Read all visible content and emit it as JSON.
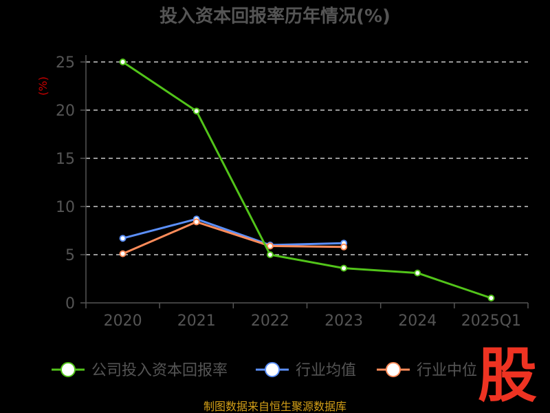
{
  "chart_data": {
    "type": "line",
    "title": "投入资本回报率历年情况(%)",
    "ylabel": "(%)",
    "categories": [
      "2020",
      "2021",
      "2022",
      "2023",
      "2024",
      "2025Q1"
    ],
    "ylim": [
      0,
      25
    ],
    "yticks": [
      "0",
      "5",
      "10",
      "15",
      "20",
      "25"
    ],
    "grid": true,
    "legend_position": "bottom",
    "series": [
      {
        "name": "公司投入资本回报率",
        "color": "#52c41a",
        "values": [
          25.0,
          19.9,
          5.0,
          3.6,
          3.1,
          0.5
        ]
      },
      {
        "name": "行业均值",
        "color": "#5b8ff9",
        "values": [
          6.7,
          8.7,
          6.0,
          6.2,
          null,
          null
        ]
      },
      {
        "name": "行业中位",
        "color": "#ff8c5a",
        "values": [
          5.1,
          8.4,
          5.9,
          5.8,
          null,
          null
        ]
      }
    ]
  },
  "source": "制图数据来自恒生聚源数据库",
  "logo_text": "股"
}
